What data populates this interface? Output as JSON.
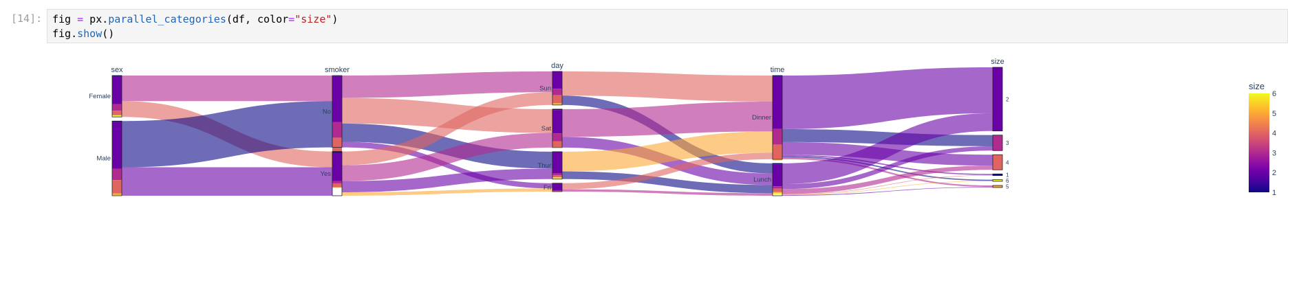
{
  "cell": {
    "prompt": "[14]:",
    "code": {
      "line1": [
        {
          "t": "fig ",
          "c": "plain"
        },
        {
          "t": "=",
          "c": "op"
        },
        {
          "t": " px.",
          "c": "plain"
        },
        {
          "t": "parallel_categories",
          "c": "fn"
        },
        {
          "t": "(df, color",
          "c": "plain"
        },
        {
          "t": "=",
          "c": "op"
        },
        {
          "t": "\"size\"",
          "c": "str"
        },
        {
          "t": ")",
          "c": "plain"
        }
      ],
      "line2": [
        {
          "t": "fig.",
          "c": "plain"
        },
        {
          "t": "show",
          "c": "fn"
        },
        {
          "t": "()",
          "c": "plain"
        }
      ]
    }
  },
  "chart_data": {
    "type": "parallel_categories",
    "color_dimension": "size",
    "colorscale": [
      "#0d0887",
      "#46039f",
      "#7201a8",
      "#9c179e",
      "#bd3786",
      "#d8576b",
      "#ed7953",
      "#fb9f3a",
      "#fdca26",
      "#f0f921"
    ],
    "colorbar": {
      "title": "size",
      "min": 1,
      "max": 6,
      "ticks": [
        1,
        2,
        3,
        4,
        5,
        6
      ]
    },
    "dimensions": [
      {
        "label": "sex",
        "categories": [
          {
            "label": "Female",
            "count": 87
          },
          {
            "label": "Male",
            "count": 157
          }
        ]
      },
      {
        "label": "smoker",
        "categories": [
          {
            "label": "No",
            "count": 151
          },
          {
            "label": "Yes",
            "count": 93
          }
        ]
      },
      {
        "label": "day",
        "categories": [
          {
            "label": "Sun",
            "count": 76
          },
          {
            "label": "Sat",
            "count": 87
          },
          {
            "label": "Thur",
            "count": 62
          },
          {
            "label": "Fri",
            "count": 19
          }
        ]
      },
      {
        "label": "time",
        "categories": [
          {
            "label": "Dinner",
            "count": 176
          },
          {
            "label": "Lunch",
            "count": 68
          }
        ]
      },
      {
        "label": "size",
        "categories": [
          {
            "label": "2",
            "count": 156
          },
          {
            "label": "3",
            "count": 38
          },
          {
            "label": "4",
            "count": 37
          },
          {
            "label": "1",
            "count": 4
          },
          {
            "label": "6",
            "count": 4
          },
          {
            "label": "5",
            "count": 5
          }
        ]
      }
    ],
    "size_breakdown": {
      "Female": {
        "1": 2,
        "2": 58,
        "3": 14,
        "4": 9,
        "5": 1,
        "6": 3
      },
      "Male": {
        "1": 2,
        "2": 98,
        "3": 24,
        "4": 28,
        "5": 4,
        "6": 1
      },
      "No": {
        "1": 1,
        "2": 97,
        "3": 33,
        "4": 29,
        "5": 4,
        "6": 4
      },
      "Yes": {
        "1": 3,
        "2": 59,
        "3": 5,
        "4": 8,
        "5": 1,
        "6": 0
      },
      "Sun": {
        "1": 0,
        "2": 39,
        "3": 15,
        "4": 18,
        "5": 3,
        "6": 1
      },
      "Sat": {
        "1": 2,
        "2": 53,
        "3": 18,
        "4": 13,
        "5": 1,
        "6": 0
      },
      "Thur": {
        "1": 1,
        "2": 48,
        "3": 4,
        "4": 5,
        "5": 1,
        "6": 3
      },
      "Fri": {
        "1": 1,
        "2": 16,
        "3": 1,
        "4": 1,
        "5": 0,
        "6": 0
      },
      "Dinner": {
        "1": 2,
        "2": 110,
        "3": 33,
        "4": 30,
        "5": 3,
        "6": 1
      },
      "Lunch": {
        "1": 2,
        "2": 46,
        "3": 5,
        "4": 7,
        "5": 2,
        "6": 3
      }
    }
  }
}
